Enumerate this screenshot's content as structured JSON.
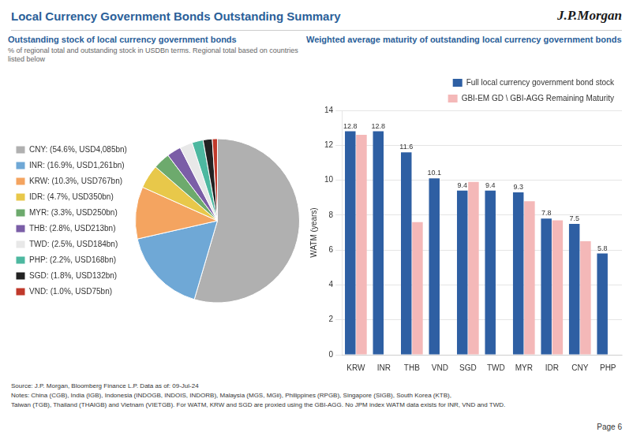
{
  "title": "Local Currency Government Bonds Outstanding Summary",
  "annotations": [
    "J.P.Morgan",
    "Source: J.P. Morgan, Bloomberg Finance L.P.  Data as of: 09-Jul-24",
    "Notes: China (CGB), India (IGB), Indonesia (INDOGB, INDOIS, INDORB), Malaysia (MGS, MGii), Philippines (RPGB), Singapore (SIGB), South Korea (KTB),",
    "Taiwan (TGB), Thailand (THAIGB) and Vietnam (VIETGB). For WATM, KRW and SGD are proxied using the GBI-AGG. No JPM index WATM data exists for INR, VND and TWD.",
    "Page 6"
  ],
  "chart_data": [
    {
      "type": "pie",
      "title": "Outstanding stock of local currency government bonds",
      "subtitle": "% of regional total and outstanding stock in USDBn terms. Regional total based on countries listed below",
      "categories": [
        "CNY: (54.6%, USD4,085bn)",
        "INR: (16.9%, USD1,261bn)",
        "KRW: (10.3%, USD767bn)",
        "IDR: (4.7%, USD350bn)",
        "MYR: (3.3%, USD250bn)",
        "THB: (2.8%, USD213bn)",
        "TWD: (2.5%, USD184bn)",
        "PHP: (2.2%, USD168bn)",
        "SGD: (1.8%, USD132bn)",
        "VND: (1.0%, USD75bn)"
      ],
      "values": [
        54.6,
        16.9,
        10.3,
        4.7,
        3.3,
        2.8,
        2.5,
        2.2,
        1.8,
        1.0
      ],
      "colors": [
        "#b0b0b0",
        "#6fa8d6",
        "#f4a460",
        "#e8c84a",
        "#6daa6d",
        "#7b5ea7",
        "#e8e8e8",
        "#4db8a0",
        "#222222",
        "#c0392b"
      ],
      "legend": "left"
    },
    {
      "type": "bar",
      "title": "Weighted average maturity of outstanding local currency government bonds",
      "ylabel": "WATM (years)",
      "categories": [
        "KRW",
        "INR",
        "THB",
        "VND",
        "SGD",
        "TWD",
        "MYR",
        "IDR",
        "CNY",
        "PHP"
      ],
      "series": [
        {
          "name": "Full local currency government bond stock",
          "color": "#2e5fa3",
          "values": [
            12.8,
            12.8,
            11.6,
            10.1,
            9.4,
            9.4,
            9.3,
            7.8,
            7.5,
            5.8
          ],
          "data_labels": true
        },
        {
          "name": "GBI-EM GD \\ GBI-AGG Remaining Maturity",
          "color": "#f4b8b8",
          "values": [
            12.6,
            null,
            7.6,
            null,
            9.9,
            null,
            8.8,
            7.7,
            6.5,
            null
          ]
        }
      ],
      "ylim": [
        0,
        14
      ],
      "yticks": [
        0,
        2,
        4,
        6,
        8,
        10,
        12,
        14
      ],
      "grid": true,
      "legend": "upper right"
    }
  ]
}
